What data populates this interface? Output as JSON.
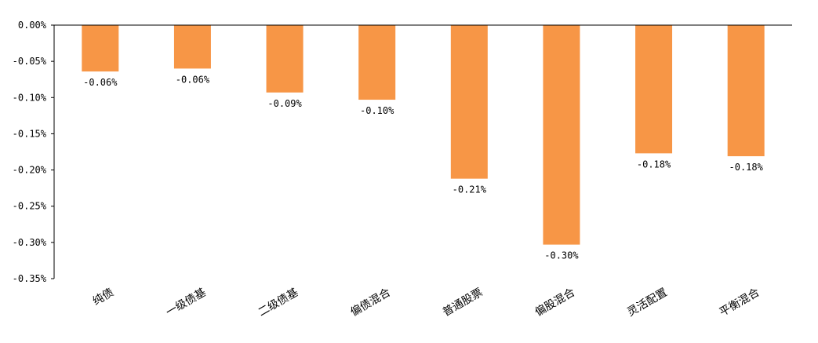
{
  "chart_data": {
    "type": "bar",
    "title": "",
    "xlabel": "",
    "ylabel": "",
    "categories": [
      "纯债",
      "一级债基",
      "二级债基",
      "偏债混合",
      "普通股票",
      "偏股混合",
      "灵活配置",
      "平衡混合"
    ],
    "values": [
      -0.064,
      -0.06,
      -0.093,
      -0.103,
      -0.212,
      -0.303,
      -0.177,
      -0.181
    ],
    "data_labels": [
      "-0.06%",
      "-0.06%",
      "-0.09%",
      "-0.10%",
      "-0.21%",
      "-0.30%",
      "-0.18%",
      "-0.18%"
    ],
    "ylim": [
      -0.35,
      0.0
    ],
    "y_ticks": [
      0.0,
      -0.05,
      -0.1,
      -0.15,
      -0.2,
      -0.25,
      -0.3,
      -0.35
    ],
    "y_tick_labels": [
      "0.00%",
      "-0.05%",
      "-0.10%",
      "-0.15%",
      "-0.20%",
      "-0.25%",
      "-0.30%",
      "-0.35%"
    ],
    "bar_color": "#F79646",
    "grid": false,
    "legend": "none"
  }
}
